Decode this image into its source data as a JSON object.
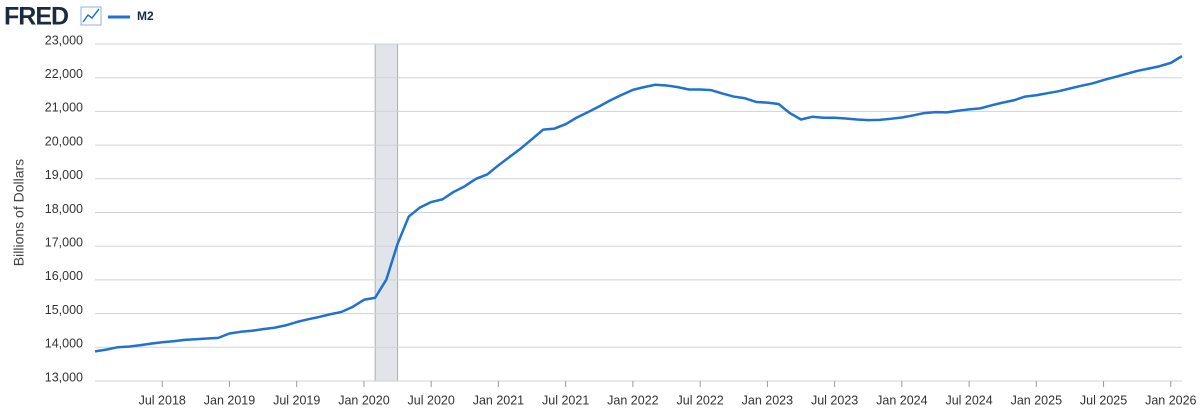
{
  "header": {
    "logo": "FRED"
  },
  "chart_data": {
    "type": "line",
    "y_label": "Billions of Dollars",
    "x": [
      "2018-01",
      "2018-02",
      "2018-03",
      "2018-04",
      "2018-05",
      "2018-06",
      "2018-07",
      "2018-08",
      "2018-09",
      "2018-10",
      "2018-11",
      "2018-12",
      "2019-01",
      "2019-02",
      "2019-03",
      "2019-04",
      "2019-05",
      "2019-06",
      "2019-07",
      "2019-08",
      "2019-09",
      "2019-10",
      "2019-11",
      "2019-12",
      "2020-01",
      "2020-02",
      "2020-03",
      "2020-04",
      "2020-05",
      "2020-06",
      "2020-07",
      "2020-08",
      "2020-09",
      "2020-10",
      "2020-11",
      "2020-12",
      "2021-01",
      "2021-02",
      "2021-03",
      "2021-04",
      "2021-05",
      "2021-06",
      "2021-07",
      "2021-08",
      "2021-09",
      "2021-10",
      "2021-11",
      "2021-12",
      "2022-01",
      "2022-02",
      "2022-03",
      "2022-04",
      "2022-05",
      "2022-06",
      "2022-07",
      "2022-08",
      "2022-09",
      "2022-10",
      "2022-11",
      "2022-12",
      "2023-01",
      "2023-02",
      "2023-03",
      "2023-04",
      "2023-05",
      "2023-06",
      "2023-07",
      "2023-08",
      "2023-09",
      "2023-10",
      "2023-11",
      "2023-12",
      "2024-01",
      "2024-02",
      "2024-03",
      "2024-04",
      "2024-05",
      "2024-06",
      "2024-07",
      "2024-08",
      "2024-09",
      "2024-10",
      "2024-11",
      "2024-12",
      "2025-01",
      "2025-02",
      "2025-03",
      "2025-04",
      "2025-05",
      "2025-06",
      "2025-07",
      "2025-08",
      "2025-09",
      "2025-10",
      "2025-11",
      "2025-12",
      "2026-01",
      "2026-02"
    ],
    "series": [
      {
        "name": "M2",
        "color": "#1f72d0",
        "values": [
          13880,
          13930,
          14000,
          14020,
          14060,
          14110,
          14150,
          14180,
          14220,
          14240,
          14260,
          14280,
          14410,
          14460,
          14490,
          14540,
          14580,
          14650,
          14750,
          14830,
          14900,
          14980,
          15050,
          15200,
          15410,
          15470,
          16010,
          17070,
          17880,
          18150,
          18310,
          18390,
          18610,
          18780,
          19000,
          19130,
          19400,
          19650,
          19900,
          20180,
          20460,
          20490,
          20620,
          20820,
          20980,
          21150,
          21330,
          21490,
          21640,
          21720,
          21790,
          21770,
          21720,
          21650,
          21650,
          21630,
          21530,
          21440,
          21390,
          21280,
          21260,
          21220,
          20950,
          20760,
          20840,
          20810,
          20810,
          20790,
          20760,
          20740,
          20750,
          20780,
          20820,
          20880,
          20950,
          20980,
          20970,
          21020,
          21060,
          21090,
          21180,
          21260,
          21330,
          21440,
          21480,
          21540,
          21600,
          21680,
          21760,
          21830,
          21930,
          22020,
          22110,
          22200,
          22270,
          22340,
          22440,
          22640
        ]
      }
    ],
    "recessions": [
      {
        "start": "2020-02",
        "end": "2020-04"
      }
    ],
    "xlim": [
      "2018-01",
      "2026-02"
    ],
    "xticks": [
      {
        "value": "2018-07",
        "label": "Jul 2018"
      },
      {
        "value": "2019-01",
        "label": "Jan 2019"
      },
      {
        "value": "2019-07",
        "label": "Jul 2019"
      },
      {
        "value": "2020-01",
        "label": "Jan 2020"
      },
      {
        "value": "2020-07",
        "label": "Jul 2020"
      },
      {
        "value": "2021-01",
        "label": "Jan 2021"
      },
      {
        "value": "2021-07",
        "label": "Jul 2021"
      },
      {
        "value": "2022-01",
        "label": "Jan 2022"
      },
      {
        "value": "2022-07",
        "label": "Jul 2022"
      },
      {
        "value": "2023-01",
        "label": "Jan 2023"
      },
      {
        "value": "2023-07",
        "label": "Jul 2023"
      },
      {
        "value": "2024-01",
        "label": "Jan 2024"
      },
      {
        "value": "2024-07",
        "label": "Jul 2024"
      },
      {
        "value": "2025-01",
        "label": "Jan 2025"
      },
      {
        "value": "2025-07",
        "label": "Jul 2025"
      },
      {
        "value": "2026-01",
        "label": "Jan 2026"
      }
    ],
    "ylim": [
      13000,
      23000
    ],
    "yticks": [
      {
        "value": 13000,
        "label": "13,000"
      },
      {
        "value": 14000,
        "label": "14,000"
      },
      {
        "value": 15000,
        "label": "15,000"
      },
      {
        "value": 16000,
        "label": "16,000"
      },
      {
        "value": 17000,
        "label": "17,000"
      },
      {
        "value": 18000,
        "label": "18,000"
      },
      {
        "value": 19000,
        "label": "19,000"
      },
      {
        "value": 20000,
        "label": "20,000"
      },
      {
        "value": 21000,
        "label": "21,000"
      },
      {
        "value": 22000,
        "label": "22,000"
      },
      {
        "value": 23000,
        "label": "23,000"
      }
    ],
    "grid": true
  }
}
